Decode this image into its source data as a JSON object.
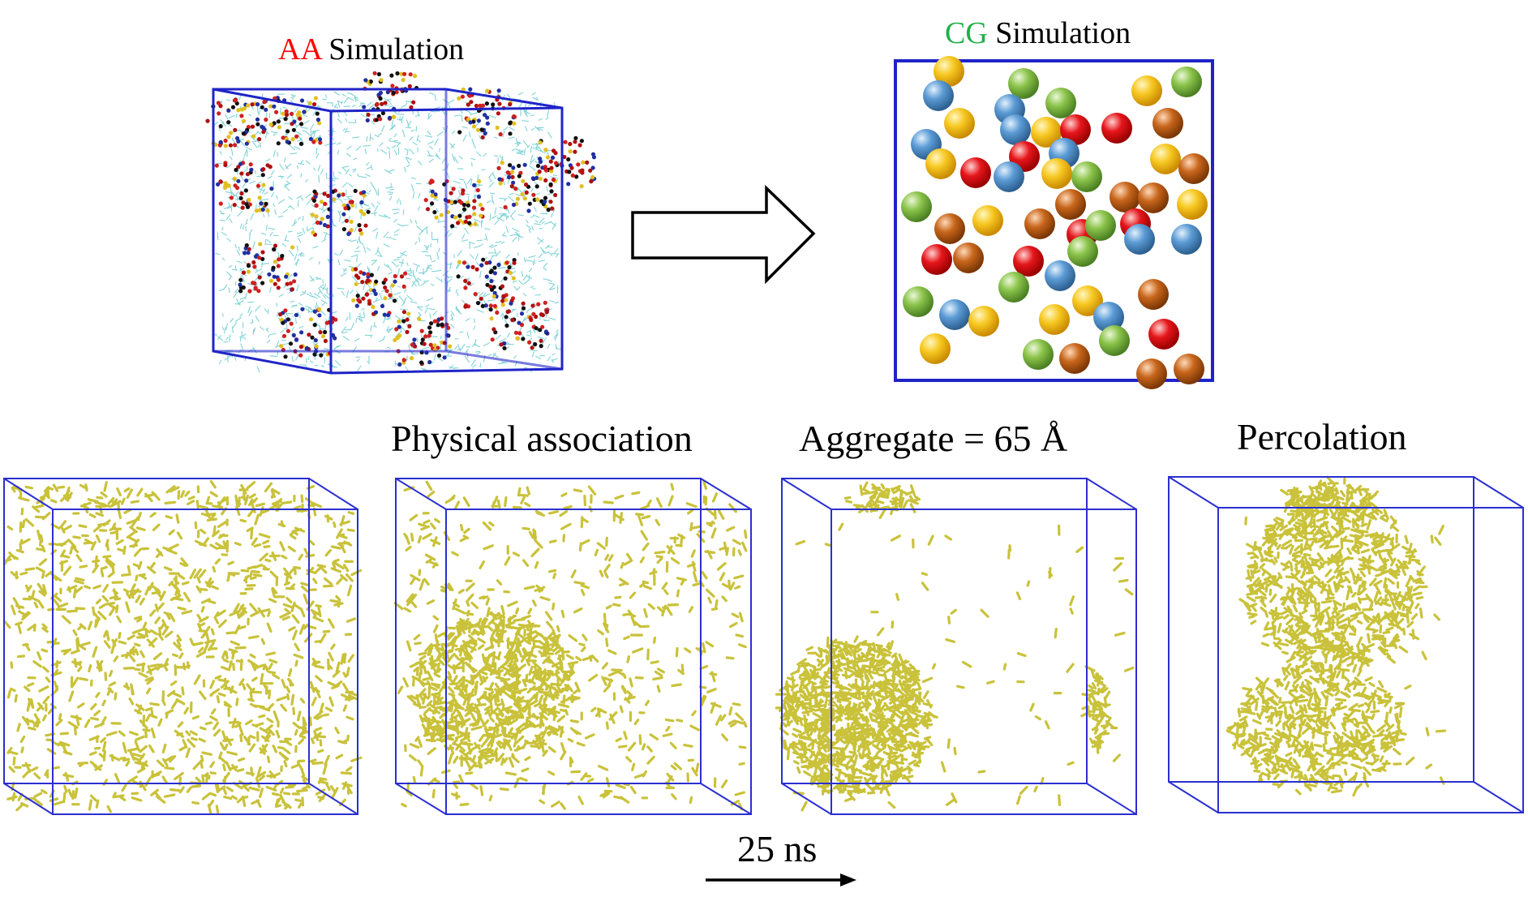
{
  "aa_panel": {
    "prefix": "AA",
    "suffix": " Simulation",
    "prefix_color": "#ff0000"
  },
  "cg_panel": {
    "prefix": "CG",
    "suffix": " Simulation",
    "prefix_color": "#1fb14a"
  },
  "stage_labels": [
    "",
    "Physical association",
    "Aggregate = 65 Å",
    "Percolation"
  ],
  "time_label": "25 ns",
  "colors": {
    "box": "#1f24c8",
    "solvent": "#7fd3d6",
    "molecule": "#c9c23a",
    "bead_colors": [
      "#f2c230",
      "#5b9bd5",
      "#8bc34a",
      "#e5161b",
      "#c8661c"
    ]
  },
  "icons": {
    "process_arrow": "hollow-right-arrow-icon",
    "time_arrow": "right-arrow-icon"
  }
}
